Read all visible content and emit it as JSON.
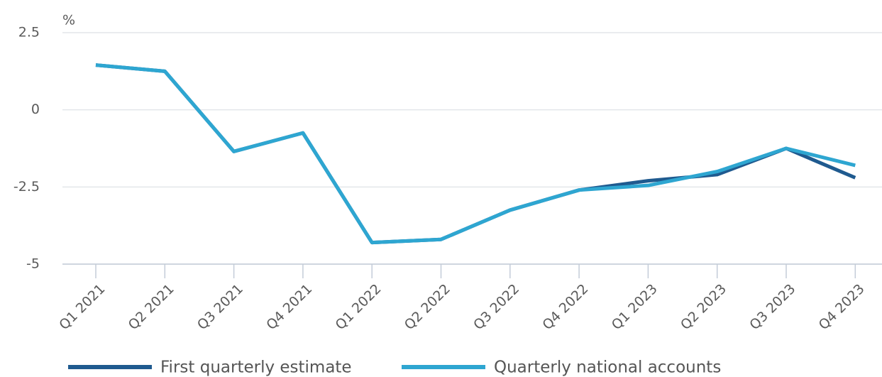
{
  "chart_data": {
    "type": "line",
    "y_label": "%",
    "categories": [
      "Q1 2021",
      "Q2 2021",
      "Q3 2021",
      "Q4 2021",
      "Q1 2022",
      "Q2 2022",
      "Q3 2022",
      "Q4 2022",
      "Q1 2023",
      "Q2 2023",
      "Q3 2023",
      "Q4 2023"
    ],
    "series": [
      {
        "name": "First quarterly estimate",
        "color": "#1f5a8f",
        "values": [
          1.45,
          1.25,
          -1.35,
          -0.75,
          -4.3,
          -4.2,
          -3.25,
          -2.6,
          -2.3,
          -2.1,
          -1.25,
          -2.2
        ]
      },
      {
        "name": "Quarterly national accounts",
        "color": "#2ea6d1",
        "values": [
          1.45,
          1.25,
          -1.35,
          -0.75,
          -4.3,
          -4.2,
          -3.25,
          -2.6,
          -2.45,
          -2.0,
          -1.25,
          -1.8
        ]
      }
    ],
    "ylim": [
      -5,
      2.5
    ],
    "yticks": [
      -5,
      -2.5,
      0,
      2.5
    ],
    "grid": true
  }
}
